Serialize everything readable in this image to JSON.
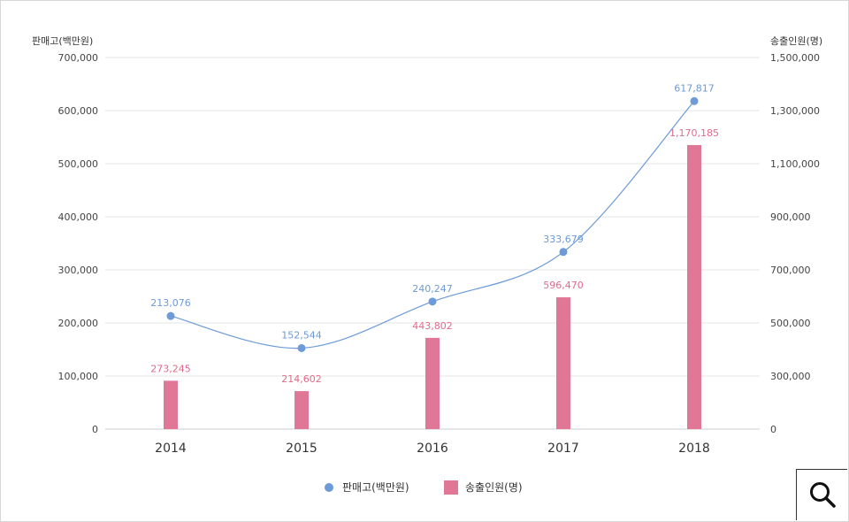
{
  "chart_data": {
    "type": "bar+line",
    "categories": [
      "2014",
      "2015",
      "2016",
      "2017",
      "2018"
    ],
    "y_left": {
      "label": "판매고(백만원)",
      "ticks": [
        "700,000",
        "600,000",
        "500,000",
        "400,000",
        "300,000",
        "200,000",
        "100,000",
        "0"
      ],
      "range": [
        0,
        700000
      ]
    },
    "y_right": {
      "label": "송출인원(명)",
      "ticks": [
        "1,500,000",
        "1,300,000",
        "1,100,000",
        "900,000",
        "700,000",
        "500,000",
        "300,000",
        "0"
      ],
      "range_note": "non-linear labels; 0 at bottom, 300,000 to 1,500,000 in steps of 200,000"
    },
    "series": [
      {
        "name": "판매고(백만원)",
        "kind": "line",
        "axis": "left",
        "color": "#6d9ad8",
        "values": [
          213076,
          152544,
          240247,
          333679,
          617817
        ],
        "labels": [
          "213,076",
          "152,544",
          "240,247",
          "333,679",
          "617,817"
        ]
      },
      {
        "name": "송출인원(명)",
        "kind": "bar",
        "axis": "right",
        "color": "#e07796",
        "values": [
          273245,
          214602,
          443802,
          596470,
          1170185
        ],
        "labels": [
          "273,245",
          "214,602",
          "443,802",
          "596,470",
          "1,170,185"
        ]
      }
    ],
    "grid": true,
    "legend": "bottom-center"
  },
  "zoom_button": {
    "icon": "search-icon"
  }
}
